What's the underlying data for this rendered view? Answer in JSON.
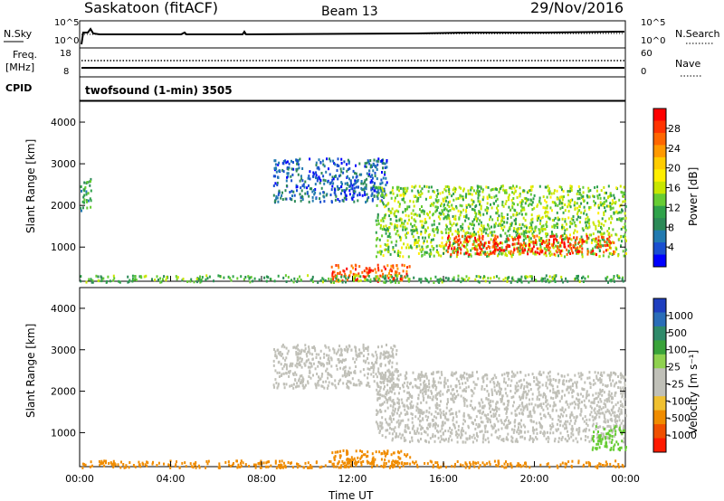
{
  "header": {
    "station": "Saskatoon (fitACF)",
    "beam": "Beam 13",
    "date": "29/Nov/2016"
  },
  "noise_panel": {
    "left_label": "N.Sky",
    "right_label": "N.Search",
    "left_ticks": [
      "10^5",
      "10^0"
    ],
    "right_ticks": [
      "10^5",
      "10^0"
    ]
  },
  "freq_panel": {
    "left_label_line1": "Freq.",
    "left_label_line2": "[MHz]",
    "right_label": "Nave",
    "left_ticks": [
      "18",
      "8"
    ],
    "right_ticks": [
      "60",
      "0"
    ]
  },
  "cpid_panel": {
    "label": "CPID",
    "text": "twofsound (1-min) 3505"
  },
  "power_panel": {
    "ylabel": "Slant Range [km]",
    "cbar_label": "Power [dB]",
    "y_ticks": [
      "4000",
      "3000",
      "2000",
      "1000"
    ],
    "cbar_ticks": [
      "28",
      "24",
      "20",
      "16",
      "12",
      "8",
      "4"
    ],
    "cbar_colors": [
      "#ff0000",
      "#ff3300",
      "#ff6600",
      "#ff9900",
      "#ffcc00",
      "#ffee00",
      "#c8e600",
      "#66cc33",
      "#2fa24a",
      "#2c8a57",
      "#227ab0",
      "#1a4fd0",
      "#0000ff"
    ]
  },
  "velocity_panel": {
    "ylabel": "Slant Range [km]",
    "cbar_label": "Velocity [m s⁻¹]",
    "y_ticks": [
      "4000",
      "3000",
      "2000",
      "1000"
    ],
    "cbar_ticks": [
      "1000",
      "500",
      "100",
      "25",
      "-25",
      "-100",
      "-500",
      "-1000"
    ],
    "cbar_colors": [
      "#1f3fbf",
      "#2a6db8",
      "#2f8a6a",
      "#3aa33a",
      "#8fd14f",
      "#c0c0b8",
      "#c0c0b8",
      "#f0c030",
      "#f08c00",
      "#f05000",
      "#ff1a00"
    ]
  },
  "x_axis": {
    "ticks": [
      "00:00",
      "04:00",
      "08:00",
      "12:00",
      "16:00",
      "20:00",
      "00:00"
    ],
    "label": "Time UT"
  },
  "chart_data": {
    "type": "heatmap",
    "x_range_hours": [
      0,
      24
    ],
    "y_range_km": [
      180,
      4500
    ],
    "power_features": [
      {
        "start_h": 0.0,
        "end_h": 0.5,
        "range_km": [
          1900,
          2700
        ],
        "power_db": 10
      },
      {
        "start_h": 8.5,
        "end_h": 13.5,
        "range_km": [
          2100,
          3150
        ],
        "power_db": 6
      },
      {
        "start_h": 13.0,
        "end_h": 24.0,
        "range_km": [
          800,
          2500
        ],
        "power_db": 14
      },
      {
        "start_h": 16.0,
        "end_h": 23.5,
        "range_km": [
          850,
          1300
        ],
        "power_db": 28
      },
      {
        "start_h": 11.0,
        "end_h": 14.5,
        "range_km": [
          200,
          600
        ],
        "power_db": 26
      },
      {
        "start_h": 0.0,
        "end_h": 24.0,
        "range_km": [
          180,
          350
        ],
        "power_db": 12
      }
    ],
    "velocity_features": [
      {
        "start_h": 8.5,
        "end_h": 14.0,
        "range_km": [
          2100,
          3150
        ],
        "velocity": 0
      },
      {
        "start_h": 13.0,
        "end_h": 24.0,
        "range_km": [
          800,
          2500
        ],
        "velocity": 0
      },
      {
        "start_h": 11.0,
        "end_h": 14.5,
        "range_km": [
          200,
          600
        ],
        "velocity": -100
      },
      {
        "start_h": 0.0,
        "end_h": 24.0,
        "range_km": [
          180,
          350
        ],
        "velocity": -100
      },
      {
        "start_h": 22.5,
        "end_h": 24.0,
        "range_km": [
          600,
          1200
        ],
        "velocity": 100
      }
    ]
  }
}
